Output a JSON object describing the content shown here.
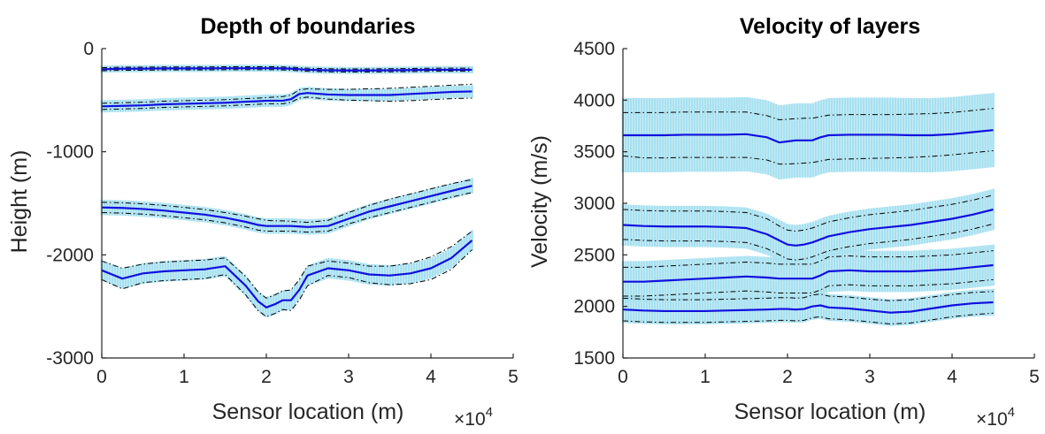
{
  "colors": {
    "mean_line": "#1010dd",
    "band": "#a6e0f0",
    "dashdot": "#000000",
    "axis": "#262626"
  },
  "chart_data": [
    {
      "type": "line",
      "title": "Depth of boundaries",
      "xlabel": "Sensor location (m)",
      "ylabel": "Height (m)",
      "x_multiplier_base": "×10",
      "x_multiplier_exp": "4",
      "xlim": [
        0,
        50000
      ],
      "ylim": [
        -3000,
        0
      ],
      "xticks": [
        0,
        10000,
        20000,
        30000,
        40000,
        50000
      ],
      "xtick_labels": [
        "0",
        "1",
        "2",
        "3",
        "4",
        "5"
      ],
      "yticks": [
        -3000,
        -2000,
        -1000,
        0
      ],
      "ytick_labels": [
        "-3000",
        "-2000",
        "-1000",
        "0"
      ],
      "x": [
        0,
        2500,
        5000,
        7500,
        10000,
        12500,
        15000,
        17500,
        19000,
        20000,
        21000,
        22000,
        23000,
        24000,
        25000,
        27500,
        30000,
        32500,
        35000,
        37500,
        40000,
        42500,
        45000
      ],
      "series": [
        {
          "mean": [
            -200,
            -195,
            -195,
            -192,
            -192,
            -192,
            -190,
            -190,
            -190,
            -190,
            -190,
            -192,
            -195,
            -200,
            -205,
            -210,
            -212,
            -212,
            -210,
            -208,
            -205,
            -205,
            -205
          ],
          "band": 35,
          "upper": [
            -185,
            -180,
            -180,
            -178,
            -178,
            -178,
            -176,
            -176,
            -176,
            -176,
            -176,
            -178,
            -180,
            -185,
            -190,
            -195,
            -197,
            -197,
            -195,
            -193,
            -190,
            -190,
            -190
          ],
          "lower": [
            -215,
            -210,
            -210,
            -207,
            -207,
            -207,
            -205,
            -205,
            -205,
            -205,
            -205,
            -207,
            -210,
            -215,
            -220,
            -225,
            -227,
            -227,
            -225,
            -223,
            -220,
            -220,
            -220
          ]
        },
        {
          "mean": [
            -560,
            -555,
            -550,
            -540,
            -535,
            -530,
            -525,
            -515,
            -510,
            -505,
            -505,
            -505,
            -490,
            -440,
            -430,
            -445,
            -450,
            -450,
            -450,
            -440,
            -430,
            -420,
            -415
          ],
          "band": 60,
          "upper": [
            -530,
            -525,
            -520,
            -510,
            -505,
            -500,
            -495,
            -485,
            -480,
            -475,
            -470,
            -465,
            -450,
            -400,
            -390,
            -395,
            -395,
            -390,
            -385,
            -375,
            -365,
            -355,
            -345
          ],
          "lower": [
            -590,
            -585,
            -580,
            -570,
            -565,
            -560,
            -555,
            -545,
            -540,
            -535,
            -535,
            -535,
            -520,
            -480,
            -470,
            -490,
            -500,
            -505,
            -510,
            -505,
            -495,
            -485,
            -480
          ]
        },
        {
          "mean": [
            -1540,
            -1545,
            -1555,
            -1570,
            -1590,
            -1610,
            -1640,
            -1680,
            -1710,
            -1720,
            -1720,
            -1720,
            -1720,
            -1725,
            -1730,
            -1720,
            -1650,
            -1580,
            -1530,
            -1480,
            -1430,
            -1380,
            -1330
          ],
          "band": 75,
          "upper": [
            -1490,
            -1495,
            -1505,
            -1520,
            -1540,
            -1560,
            -1590,
            -1625,
            -1650,
            -1665,
            -1670,
            -1670,
            -1675,
            -1680,
            -1685,
            -1665,
            -1590,
            -1520,
            -1460,
            -1410,
            -1360,
            -1310,
            -1270
          ],
          "lower": [
            -1590,
            -1595,
            -1605,
            -1620,
            -1640,
            -1660,
            -1690,
            -1730,
            -1760,
            -1770,
            -1770,
            -1770,
            -1770,
            -1775,
            -1780,
            -1770,
            -1700,
            -1640,
            -1590,
            -1540,
            -1490,
            -1440,
            -1395
          ]
        },
        {
          "mean": [
            -2150,
            -2230,
            -2180,
            -2160,
            -2150,
            -2140,
            -2110,
            -2300,
            -2450,
            -2510,
            -2480,
            -2440,
            -2440,
            -2340,
            -2200,
            -2130,
            -2150,
            -2190,
            -2200,
            -2180,
            -2130,
            -2030,
            -1860
          ],
          "band": 100,
          "upper": [
            -2060,
            -2130,
            -2090,
            -2070,
            -2060,
            -2050,
            -2030,
            -2210,
            -2360,
            -2420,
            -2390,
            -2350,
            -2340,
            -2240,
            -2110,
            -2060,
            -2080,
            -2110,
            -2110,
            -2080,
            -2020,
            -1920,
            -1770
          ],
          "lower": [
            -2240,
            -2330,
            -2270,
            -2250,
            -2240,
            -2230,
            -2190,
            -2390,
            -2540,
            -2600,
            -2570,
            -2530,
            -2540,
            -2440,
            -2300,
            -2200,
            -2220,
            -2270,
            -2290,
            -2280,
            -2240,
            -2140,
            -1950
          ]
        }
      ]
    },
    {
      "type": "line",
      "title": "Velocity of layers",
      "xlabel": "Sensor location (m)",
      "ylabel": "Velocity (m/s)",
      "x_multiplier_base": "×10",
      "x_multiplier_exp": "4",
      "xlim": [
        0,
        50000
      ],
      "ylim": [
        1500,
        4500
      ],
      "xticks": [
        0,
        10000,
        20000,
        30000,
        40000,
        50000
      ],
      "xtick_labels": [
        "0",
        "1",
        "2",
        "3",
        "4",
        "5"
      ],
      "yticks": [
        1500,
        2000,
        2500,
        3000,
        3500,
        4000,
        4500
      ],
      "ytick_labels": [
        "1500",
        "2000",
        "2500",
        "3000",
        "3500",
        "4000",
        "4500"
      ],
      "x": [
        0,
        2500,
        5000,
        7500,
        10000,
        12500,
        15000,
        17500,
        19000,
        20000,
        21000,
        22000,
        23000,
        24000,
        25000,
        27500,
        30000,
        32500,
        35000,
        37500,
        40000,
        42500,
        45000
      ],
      "series": [
        {
          "mean": [
            3660,
            3660,
            3660,
            3665,
            3665,
            3665,
            3670,
            3640,
            3590,
            3600,
            3610,
            3610,
            3610,
            3640,
            3660,
            3665,
            3665,
            3665,
            3660,
            3660,
            3670,
            3690,
            3710
          ],
          "band": 360,
          "upper": [
            3880,
            3880,
            3880,
            3885,
            3885,
            3885,
            3885,
            3850,
            3810,
            3815,
            3820,
            3825,
            3825,
            3840,
            3855,
            3860,
            3860,
            3860,
            3865,
            3870,
            3880,
            3900,
            3920
          ],
          "lower": [
            3460,
            3440,
            3440,
            3445,
            3445,
            3445,
            3445,
            3420,
            3380,
            3380,
            3385,
            3390,
            3395,
            3410,
            3425,
            3430,
            3435,
            3440,
            3445,
            3455,
            3470,
            3490,
            3510
          ]
        },
        {
          "mean": [
            2790,
            2780,
            2775,
            2775,
            2775,
            2770,
            2760,
            2700,
            2640,
            2600,
            2590,
            2600,
            2620,
            2650,
            2680,
            2720,
            2750,
            2770,
            2790,
            2820,
            2850,
            2890,
            2940
          ],
          "band": 200,
          "upper": [
            2940,
            2930,
            2925,
            2925,
            2925,
            2920,
            2910,
            2850,
            2780,
            2740,
            2730,
            2740,
            2760,
            2790,
            2820,
            2860,
            2890,
            2910,
            2930,
            2960,
            2990,
            3030,
            3080
          ],
          "lower": [
            2650,
            2640,
            2635,
            2635,
            2635,
            2630,
            2620,
            2560,
            2500,
            2460,
            2450,
            2460,
            2480,
            2510,
            2540,
            2580,
            2610,
            2630,
            2650,
            2680,
            2710,
            2750,
            2800
          ]
        },
        {
          "mean": [
            2240,
            2240,
            2250,
            2260,
            2270,
            2280,
            2290,
            2280,
            2270,
            2270,
            2270,
            2270,
            2270,
            2300,
            2340,
            2350,
            2340,
            2340,
            2340,
            2350,
            2360,
            2380,
            2400
          ],
          "band": 200,
          "upper": [
            2380,
            2380,
            2390,
            2400,
            2410,
            2420,
            2430,
            2420,
            2410,
            2410,
            2410,
            2410,
            2410,
            2440,
            2480,
            2490,
            2480,
            2480,
            2480,
            2490,
            2500,
            2520,
            2540
          ],
          "lower": [
            2100,
            2100,
            2110,
            2120,
            2130,
            2140,
            2150,
            2140,
            2130,
            2130,
            2130,
            2130,
            2130,
            2160,
            2200,
            2210,
            2200,
            2200,
            2200,
            2210,
            2220,
            2240,
            2260
          ]
        },
        {
          "mean": [
            1970,
            1960,
            1955,
            1955,
            1955,
            1960,
            1965,
            1970,
            1975,
            1975,
            1970,
            1975,
            2000,
            2010,
            1990,
            1980,
            1960,
            1940,
            1950,
            1980,
            2010,
            2030,
            2040
          ],
          "band": 130,
          "upper": [
            2080,
            2070,
            2065,
            2065,
            2065,
            2070,
            2075,
            2080,
            2085,
            2085,
            2080,
            2085,
            2110,
            2120,
            2100,
            2090,
            2070,
            2055,
            2065,
            2090,
            2115,
            2135,
            2145
          ],
          "lower": [
            1860,
            1850,
            1845,
            1845,
            1845,
            1850,
            1855,
            1860,
            1865,
            1865,
            1860,
            1865,
            1890,
            1900,
            1880,
            1870,
            1850,
            1830,
            1840,
            1870,
            1900,
            1920,
            1935
          ]
        }
      ]
    }
  ]
}
